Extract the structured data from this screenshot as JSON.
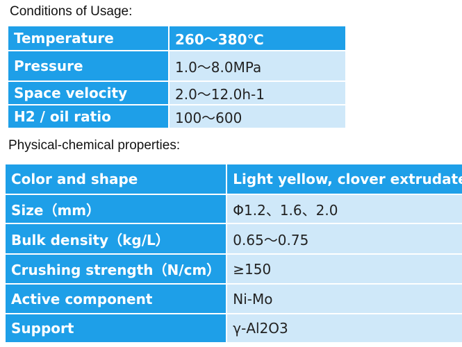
{
  "sections": [
    {
      "title": "Conditions of Usage:",
      "rows": [
        [
          "Temperature",
          "260～380℃"
        ],
        [
          "Pressure",
          "1.0～8.0MPa"
        ],
        [
          "Space velocity",
          "2.0～12.0h-1"
        ],
        [
          "H2 / oil ratio",
          "100～600"
        ]
      ]
    },
    {
      "title": "Physical-chemical properties:",
      "rows": [
        [
          "Color and shape",
          "Light yellow, clover extrudate"
        ],
        [
          "Size（mm）",
          "Φ1.2、1.6、2.0"
        ],
        [
          "Bulk density（kg/L）",
          "0.65～0.75"
        ],
        [
          "Crushing strength（N/cm）",
          "≥150"
        ],
        [
          "Active component",
          "Ni-Mo"
        ],
        [
          "Support",
          "γ-Al2O3"
        ]
      ]
    }
  ]
}
